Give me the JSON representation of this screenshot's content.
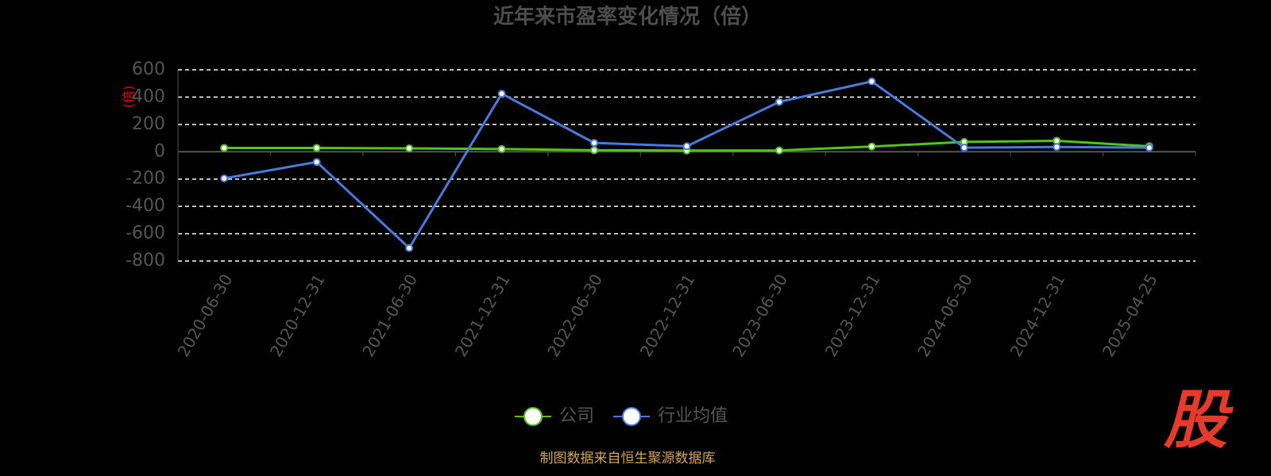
{
  "chart_data": {
    "type": "line",
    "title": "近年来市盈率变化情况（倍）",
    "y_label": "(倍)",
    "categories": [
      "2020-06-30",
      "2020-12-31",
      "2021-06-30",
      "2021-12-31",
      "2022-06-30",
      "2022-12-31",
      "2023-06-30",
      "2023-12-31",
      "2024-06-30",
      "2024-12-31",
      "2025-04-25"
    ],
    "series": [
      {
        "name": "公司",
        "color": "#52c41a",
        "values": [
          28,
          28,
          25,
          20,
          11,
          9,
          10,
          38,
          72,
          80,
          40
        ]
      },
      {
        "name": "行业均值",
        "color": "#4a7bdc",
        "values": [
          -195,
          -75,
          -705,
          425,
          65,
          40,
          365,
          515,
          30,
          35,
          30
        ]
      }
    ],
    "ylim": [
      -800,
      600
    ],
    "yticks": [
      -800,
      -600,
      -400,
      -200,
      0,
      200,
      400,
      600
    ],
    "grid": true,
    "source": "制图数据来自恒生聚源数据库",
    "logo": "股"
  }
}
